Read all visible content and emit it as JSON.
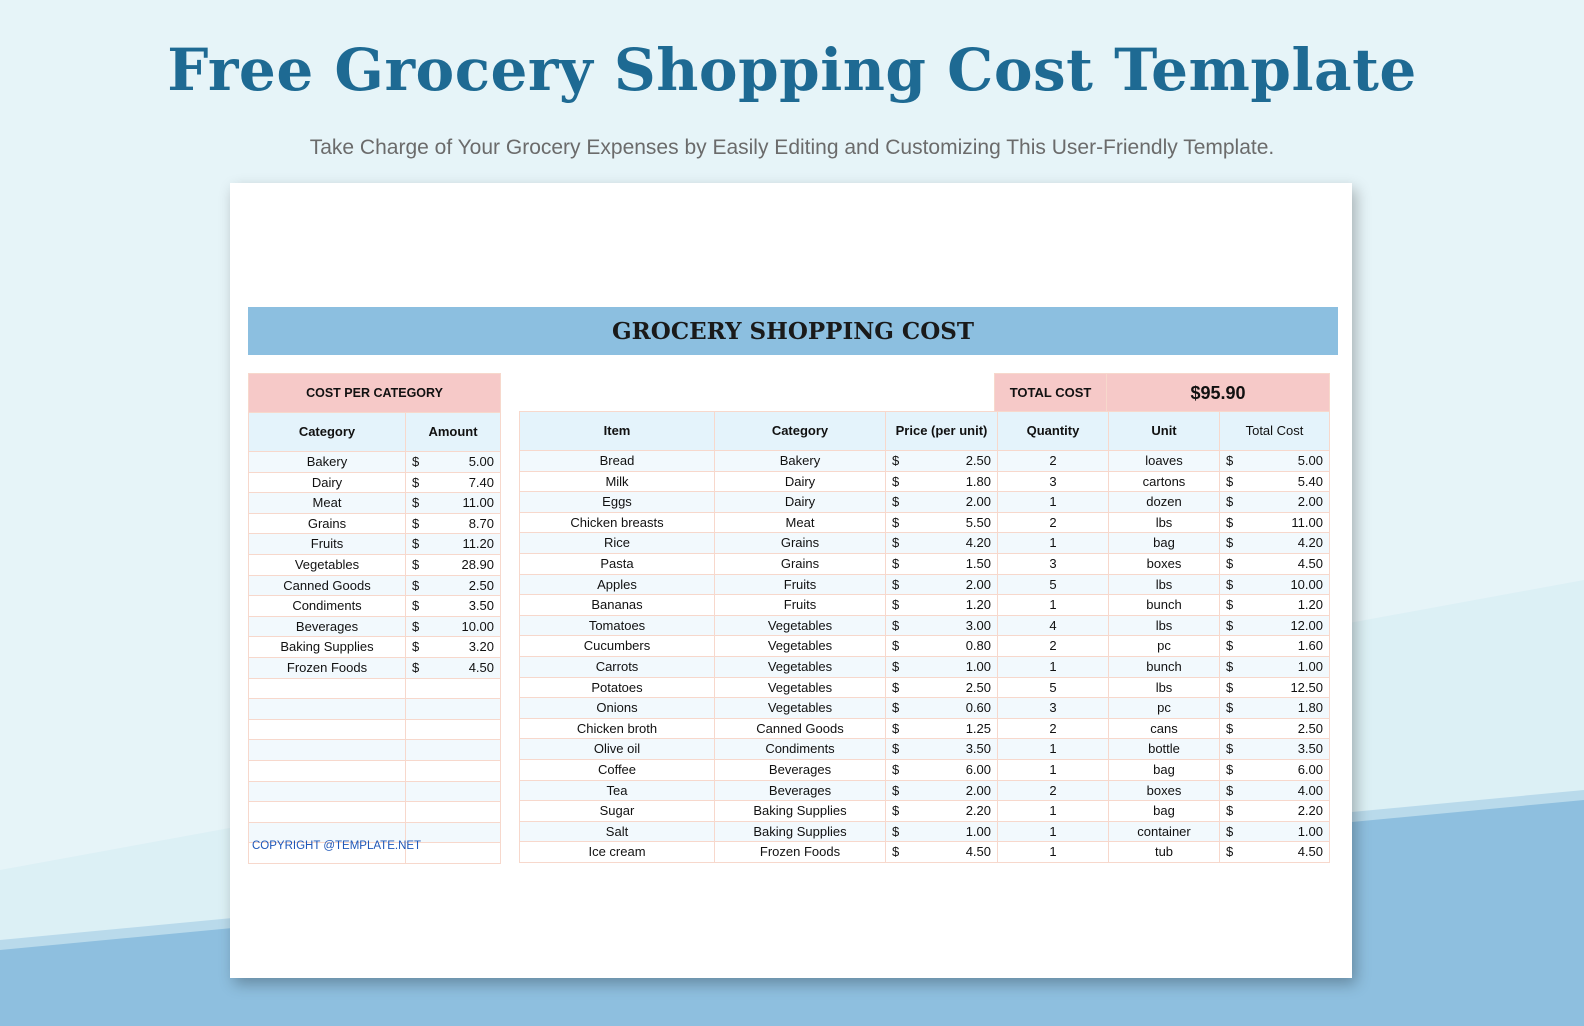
{
  "page": {
    "title": "Free Grocery Shopping Cost Template",
    "subtitle": "Take Charge of Your Grocery Expenses by Easily Editing and Customizing This User-Friendly Template."
  },
  "sheet": {
    "banner": "GROCERY SHOPPING COST",
    "copyright": "COPYRIGHT @TEMPLATE.NET",
    "category_table": {
      "heading": "COST PER CATEGORY",
      "headers": [
        "Category",
        "Amount"
      ],
      "currency": "$",
      "empty_rows": 9,
      "rows": [
        {
          "category": "Bakery",
          "amount": "5.00"
        },
        {
          "category": "Dairy",
          "amount": "7.40"
        },
        {
          "category": "Meat",
          "amount": "11.00"
        },
        {
          "category": "Grains",
          "amount": "8.70"
        },
        {
          "category": "Fruits",
          "amount": "11.20"
        },
        {
          "category": "Vegetables",
          "amount": "28.90"
        },
        {
          "category": "Canned Goods",
          "amount": "2.50"
        },
        {
          "category": "Condiments",
          "amount": "3.50"
        },
        {
          "category": "Beverages",
          "amount": "10.00"
        },
        {
          "category": "Baking Supplies",
          "amount": "3.20"
        },
        {
          "category": "Frozen Foods",
          "amount": "4.50"
        }
      ]
    },
    "total": {
      "label": "TOTAL COST",
      "value": "$95.90"
    },
    "items_table": {
      "headers": [
        "Item",
        "Category",
        "Price (per unit)",
        "Quantity",
        "Unit",
        "Total Cost"
      ],
      "currency": "$",
      "rows": [
        {
          "item": "Bread",
          "category": "Bakery",
          "price": "2.50",
          "quantity": "2",
          "unit": "loaves",
          "total": "5.00"
        },
        {
          "item": "Milk",
          "category": "Dairy",
          "price": "1.80",
          "quantity": "3",
          "unit": "cartons",
          "total": "5.40"
        },
        {
          "item": "Eggs",
          "category": "Dairy",
          "price": "2.00",
          "quantity": "1",
          "unit": "dozen",
          "total": "2.00"
        },
        {
          "item": "Chicken breasts",
          "category": "Meat",
          "price": "5.50",
          "quantity": "2",
          "unit": "lbs",
          "total": "11.00"
        },
        {
          "item": "Rice",
          "category": "Grains",
          "price": "4.20",
          "quantity": "1",
          "unit": "bag",
          "total": "4.20"
        },
        {
          "item": "Pasta",
          "category": "Grains",
          "price": "1.50",
          "quantity": "3",
          "unit": "boxes",
          "total": "4.50"
        },
        {
          "item": "Apples",
          "category": "Fruits",
          "price": "2.00",
          "quantity": "5",
          "unit": "lbs",
          "total": "10.00"
        },
        {
          "item": "Bananas",
          "category": "Fruits",
          "price": "1.20",
          "quantity": "1",
          "unit": "bunch",
          "total": "1.20"
        },
        {
          "item": "Tomatoes",
          "category": "Vegetables",
          "price": "3.00",
          "quantity": "4",
          "unit": "lbs",
          "total": "12.00"
        },
        {
          "item": "Cucumbers",
          "category": "Vegetables",
          "price": "0.80",
          "quantity": "2",
          "unit": "pc",
          "total": "1.60"
        },
        {
          "item": "Carrots",
          "category": "Vegetables",
          "price": "1.00",
          "quantity": "1",
          "unit": "bunch",
          "total": "1.00"
        },
        {
          "item": "Potatoes",
          "category": "Vegetables",
          "price": "2.50",
          "quantity": "5",
          "unit": "lbs",
          "total": "12.50"
        },
        {
          "item": "Onions",
          "category": "Vegetables",
          "price": "0.60",
          "quantity": "3",
          "unit": "pc",
          "total": "1.80"
        },
        {
          "item": "Chicken broth",
          "category": "Canned Goods",
          "price": "1.25",
          "quantity": "2",
          "unit": "cans",
          "total": "2.50"
        },
        {
          "item": "Olive oil",
          "category": "Condiments",
          "price": "3.50",
          "quantity": "1",
          "unit": "bottle",
          "total": "3.50"
        },
        {
          "item": "Coffee",
          "category": "Beverages",
          "price": "6.00",
          "quantity": "1",
          "unit": "bag",
          "total": "6.00"
        },
        {
          "item": "Tea",
          "category": "Beverages",
          "price": "2.00",
          "quantity": "2",
          "unit": "boxes",
          "total": "4.00"
        },
        {
          "item": "Sugar",
          "category": "Baking Supplies",
          "price": "2.20",
          "quantity": "1",
          "unit": "bag",
          "total": "2.20"
        },
        {
          "item": "Salt",
          "category": "Baking Supplies",
          "price": "1.00",
          "quantity": "1",
          "unit": "container",
          "total": "1.00"
        },
        {
          "item": "Ice cream",
          "category": "Frozen Foods",
          "price": "4.50",
          "quantity": "1",
          "unit": "tub",
          "total": "4.50"
        }
      ]
    }
  },
  "colors": {
    "title": "#1e6a93",
    "banner": "#8cbfe0",
    "pink_header": "#f6c9c8",
    "blue_header": "#e4f3fb",
    "copyright": "#1f57b8"
  }
}
